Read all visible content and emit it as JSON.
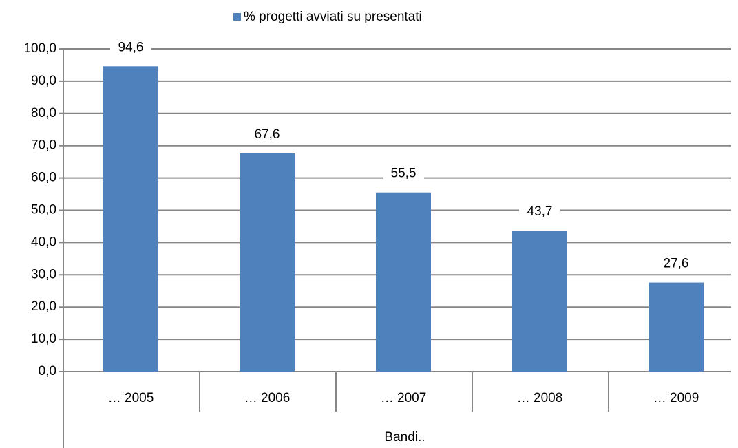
{
  "chart_data": {
    "type": "bar",
    "legend": "% progetti avviati su presentati",
    "x_label": "Bandi..",
    "categories": [
      "… 2005",
      "… 2006",
      "… 2007",
      "… 2008",
      "… 2009"
    ],
    "values": [
      94.6,
      67.6,
      55.5,
      43.7,
      27.6
    ],
    "value_labels": [
      "94,6",
      "67,6",
      "55,5",
      "43,7",
      "27,6"
    ],
    "color": "#4f81bd",
    "ylim": [
      0,
      100
    ],
    "yticks": [
      {
        "value": 0,
        "label": "0,0"
      },
      {
        "value": 10,
        "label": "10,0"
      },
      {
        "value": 20,
        "label": "20,0"
      },
      {
        "value": 30,
        "label": "30,0"
      },
      {
        "value": 40,
        "label": "40,0"
      },
      {
        "value": 50,
        "label": "50,0"
      },
      {
        "value": 60,
        "label": "60,0"
      },
      {
        "value": 70,
        "label": "70,0"
      },
      {
        "value": 80,
        "label": "80,0"
      },
      {
        "value": 90,
        "label": "90,0"
      },
      {
        "value": 100,
        "label": "100,0"
      }
    ],
    "grid": true
  }
}
